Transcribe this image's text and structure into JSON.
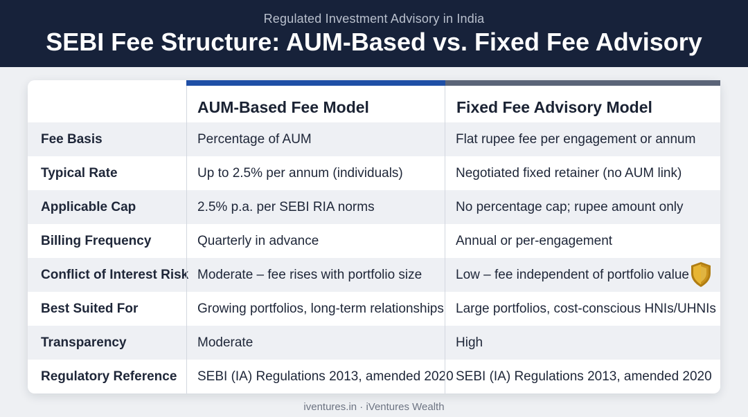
{
  "header": {
    "subtitle": "Regulated Investment Advisory in India",
    "title": "SEBI Fee Structure: AUM-Based vs. Fixed Fee Advisory"
  },
  "table": {
    "columns": [
      "AUM-Based Fee Model",
      "Fixed Fee Advisory Model"
    ],
    "rows": [
      {
        "label": "Fee Basis",
        "aum": "Percentage of AUM",
        "fixed": "Flat rupee fee per engagement or annum"
      },
      {
        "label": "Typical Rate",
        "aum": "Up to 2.5% per annum (individuals)",
        "fixed": "Negotiated fixed retainer (no AUM link)"
      },
      {
        "label": "Applicable Cap",
        "aum": "2.5% p.a. per SEBI RIA norms",
        "fixed": "No percentage cap; rupee amount only"
      },
      {
        "label": "Billing Frequency",
        "aum": "Quarterly in advance",
        "fixed": "Annual or per-engagement"
      },
      {
        "label": "Conflict of Interest Risk",
        "aum": "Moderate – fee rises with portfolio size",
        "fixed": "Low – fee independent of portfolio value"
      },
      {
        "label": "Best Suited For",
        "aum": "Growing portfolios, long-term relationships",
        "fixed": "Large portfolios, cost-conscious HNIs/UHNIs"
      },
      {
        "label": "Transparency",
        "aum": "Moderate",
        "fixed": "High"
      },
      {
        "label": "Regulatory Reference",
        "aum": "SEBI (IA) Regulations 2013, amended 2020",
        "fixed": "SEBI (IA) Regulations 2013, amended 2020"
      }
    ]
  },
  "icons": {
    "conflict_badge": "gold-shield-icon"
  },
  "colors": {
    "header_bg": "#17223a",
    "aum_accent": "#1f4fa6",
    "fixed_accent": "#5b6478",
    "shield_gold": "#d9a21e"
  },
  "footer": {
    "text": "iventures.in · iVentures Wealth"
  }
}
